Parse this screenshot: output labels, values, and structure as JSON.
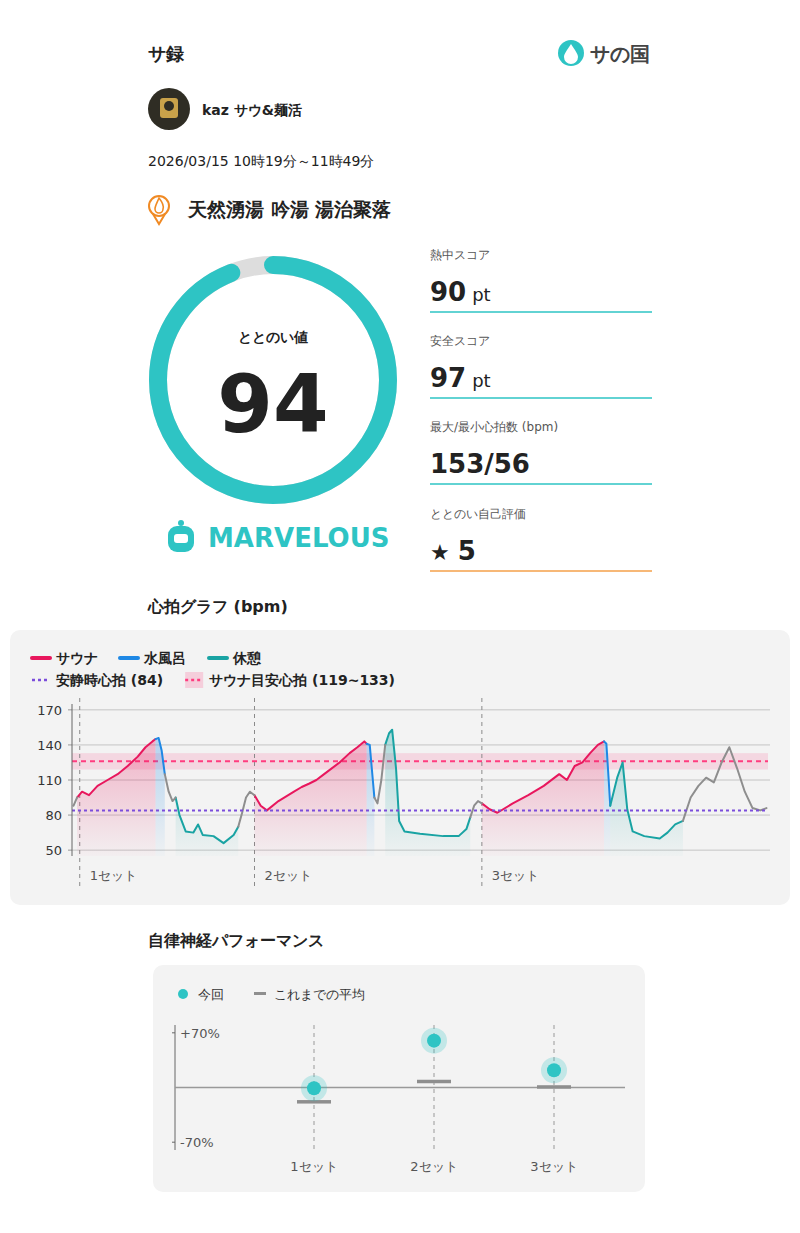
{
  "header": {
    "title": "サ録",
    "brand": "サの国"
  },
  "user": {
    "name": "kaz サウ&麺活"
  },
  "session": {
    "datetime": "2026/03/15 10時19分～11時49分",
    "facility": "天然湧湯 吟湯 湯治聚落"
  },
  "totonoi": {
    "label": "ととのい値",
    "value": 94,
    "range": [
      0,
      100
    ],
    "rating": "MARVELOUS"
  },
  "stats": [
    {
      "label": "熱中スコア",
      "value": 90,
      "unit": "pt"
    },
    {
      "label": "安全スコア",
      "value": 97,
      "unit": "pt"
    },
    {
      "label": "最大/最小心拍数 (bpm)",
      "value": "153/56"
    },
    {
      "label": "ととのい自己評価",
      "value": 5,
      "icon": "★"
    }
  ],
  "chart_data": [
    {
      "type": "line",
      "title": "心拍グラフ (bpm)",
      "xlim": [
        0,
        90
      ],
      "ylim": [
        45,
        175
      ],
      "yticks": [
        50,
        80,
        110,
        140,
        170
      ],
      "grid": true,
      "legend": "top-left",
      "tick_labels": "y",
      "series": [
        {
          "name": "サウナ",
          "color": "#e8175d",
          "x": [
            0.65,
            1.3,
            2.2,
            3.3,
            4.6,
            5.9,
            7.2,
            8.5,
            9.5,
            10.4,
            10.8,
            null,
            23.6,
            24.4,
            25.2,
            26.7,
            28.7,
            29.7,
            30.7,
            31.6,
            32.6,
            34.6,
            35.9,
            36.9,
            37.8,
            38.1,
            null,
            53.0,
            54.0,
            55.0,
            57.0,
            59.0,
            61.0,
            63.0,
            64.0,
            65.0,
            66.0,
            67.0,
            68.0,
            68.8
          ],
          "values": [
            95,
            100,
            97,
            105,
            110,
            115,
            122,
            130,
            138,
            143,
            145,
            null,
            97,
            88,
            84,
            92,
            100,
            104,
            107,
            110,
            115,
            125,
            133,
            138,
            143,
            141,
            null,
            90,
            85,
            82,
            90,
            97,
            105,
            115,
            110,
            122,
            125,
            133,
            140,
            143
          ]
        },
        {
          "name": "水風呂",
          "color": "#1e88e5",
          "x": [
            10.8,
            11.2,
            11.6,
            12.0,
            null,
            38.1,
            38.5,
            38.9,
            39.1,
            null,
            68.8,
            69.1,
            69.4,
            69.6
          ],
          "values": [
            145,
            146,
            135,
            115,
            null,
            141,
            140,
            110,
            95,
            null,
            143,
            141,
            110,
            88
          ]
        },
        {
          "name": "休憩",
          "color": "#19a3a3",
          "x": [
            13.4,
            13.9,
            14.7,
            15.7,
            16.3,
            16.9,
            18.3,
            19.6,
            20.9,
            21.5,
            null,
            40.5,
            41.0,
            41.4,
            41.9,
            42.3,
            43.0,
            45.0,
            48.0,
            50.0,
            51.0,
            51.5,
            null,
            69.6,
            70.5,
            71.2,
            71.8,
            72.5,
            74.0,
            76.0,
            77.0,
            78.0,
            79.0
          ],
          "values": [
            95,
            80,
            66,
            65,
            72,
            63,
            62,
            56,
            63,
            70,
            null,
            140,
            150,
            153,
            120,
            75,
            66,
            64,
            62,
            62,
            68,
            78,
            null,
            88,
            112,
            125,
            85,
            66,
            62,
            60,
            65,
            72,
            75
          ]
        },
        {
          "color": "#8e8e8e",
          "x": [
            0.2,
            0.65,
            null,
            12.0,
            12.5,
            13.0,
            13.4,
            null,
            21.5,
            22.0,
            22.5,
            23.0,
            23.6,
            null,
            39.1,
            39.5,
            40.0,
            40.5,
            null,
            51.5,
            52.0,
            52.5,
            53.0,
            null,
            79.0,
            80.0,
            81.0,
            82.0,
            83.0,
            84.0,
            85.0,
            86.0,
            87.0,
            88.0,
            89.0,
            89.8
          ],
          "values": [
            88,
            95,
            null,
            115,
            100,
            92,
            95,
            null,
            70,
            82,
            95,
            100,
            97,
            null,
            95,
            90,
            110,
            140,
            null,
            78,
            88,
            92,
            90,
            null,
            75,
            95,
            105,
            112,
            108,
            125,
            138,
            120,
            100,
            86,
            84,
            86
          ]
        }
      ],
      "reference_lines": [
        {
          "label": "安静時心拍 (84)",
          "value": 84,
          "color": "#7b4ddb",
          "line_style": "dotted"
        }
      ],
      "bands": [
        {
          "label": "サウナ目安心拍 (119~133)",
          "range": [
            119,
            133
          ],
          "color": "#ff3d7f"
        }
      ],
      "sets": [
        {
          "label": "1セット",
          "x": 1.0
        },
        {
          "label": "2セット",
          "x": 23.6
        },
        {
          "label": "3セット",
          "x": 53.0
        }
      ]
    },
    {
      "type": "scatter",
      "title": "自律神経パフォーマンス",
      "categories": [
        "1セット",
        "2セット",
        "3セット"
      ],
      "ylim": [
        -80,
        80
      ],
      "yticks": [
        {
          "value": 70,
          "label": "+70%"
        },
        {
          "value": -70,
          "label": "-70%"
        }
      ],
      "legend": "top-left",
      "series": [
        {
          "name": "今回",
          "color": "#2ec4c4",
          "marker": "circle",
          "values": [
            -1,
            60,
            22
          ]
        },
        {
          "name": "これまでの平均",
          "color": "#8e8e8e",
          "marker": "dash",
          "values": [
            -18,
            8,
            1
          ]
        }
      ]
    }
  ]
}
